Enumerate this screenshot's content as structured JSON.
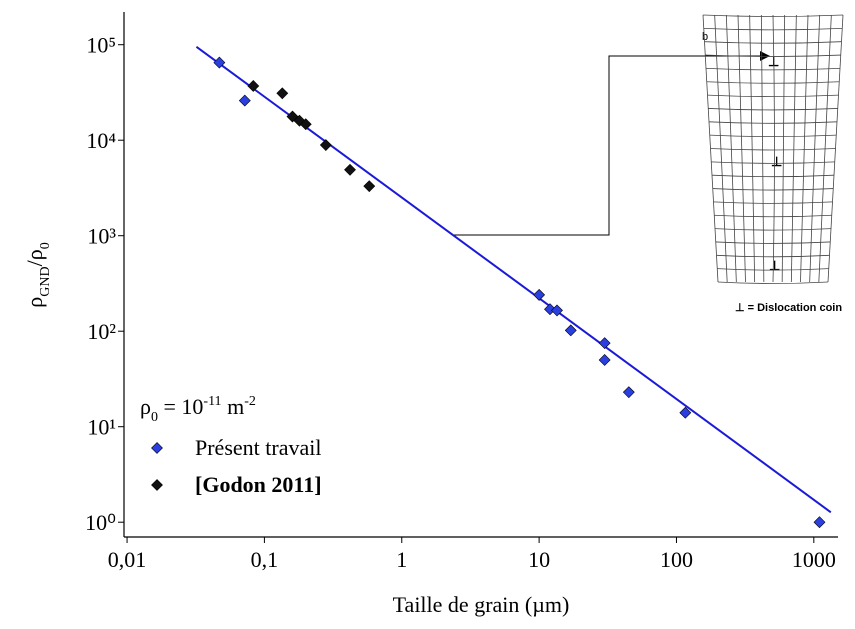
{
  "chart_data": {
    "type": "scatter",
    "xlabel": "Taille de grain (µm)",
    "ylabel": [
      {
        "text": "ρ"
      },
      {
        "text": "GND",
        "script": "sub"
      },
      {
        "text": "/ρ"
      },
      {
        "text": "0",
        "script": "sub"
      }
    ],
    "annotation": [
      {
        "text": "ρ"
      },
      {
        "text": "0",
        "script": "sub"
      },
      {
        "text": " = 10"
      },
      {
        "text": "-11",
        "script": "sup"
      },
      {
        "text": " m"
      },
      {
        "text": "-2",
        "script": "sup"
      }
    ],
    "log_x": true,
    "log_y": true,
    "xlim": [
      0.0095,
      1500
    ],
    "ylim": [
      0.7,
      220000
    ],
    "xticks": [
      {
        "value": 0.01,
        "label": "0,01"
      },
      {
        "value": 0.1,
        "label": "0,1"
      },
      1,
      10,
      100,
      1000
    ],
    "yticks": [
      {
        "value": 1,
        "label": "10⁰"
      },
      {
        "value": 10,
        "label": "10¹"
      },
      {
        "value": 100,
        "label": "10²"
      },
      {
        "value": 1000,
        "label": "10³"
      },
      {
        "value": 10000,
        "label": "10⁴"
      },
      {
        "value": 100000,
        "label": "10⁵"
      }
    ],
    "legend": "lower-left",
    "series": [
      {
        "name": "Présent travail",
        "color": "#2a3fe0",
        "x": [
          0.047,
          0.072,
          10,
          12,
          13.5,
          17,
          30,
          30,
          45,
          116,
          1100
        ],
        "values": [
          65000,
          26000,
          240,
          170,
          165,
          102,
          75,
          50,
          23,
          14,
          1
        ]
      },
      {
        "name": "[Godon 2011]",
        "color": "#111111",
        "bold": true,
        "x": [
          0.083,
          0.135,
          0.16,
          0.18,
          0.2,
          0.28,
          0.42,
          0.58
        ],
        "values": [
          37000,
          31000,
          17700,
          16000,
          14700,
          8900,
          4900,
          3300
        ]
      }
    ],
    "fit": {
      "color": "#1a1ad8",
      "x": [
        0.032,
        1330
      ],
      "y": [
        95000,
        1.27
      ]
    }
  },
  "inset": {
    "burgers": "b",
    "symbol": "⊥",
    "legend": "⊥ = Dislocation coin"
  }
}
